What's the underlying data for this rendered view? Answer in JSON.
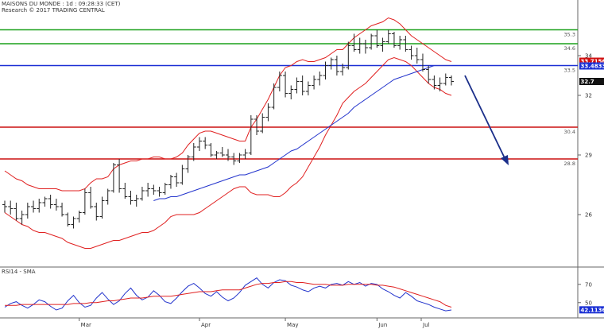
{
  "header": {
    "title": "MAISONS DU MONDE : 1d : 09:28:33 (CET)",
    "copyright": "Research © 2017 TRADING CENTRAL"
  },
  "indicator": {
    "label": "RSI14 - SMA"
  },
  "colors": {
    "background": "#ffffff",
    "price": "#222222",
    "bollinger": "#e02020",
    "ma": "#2233cc",
    "resistance": "#1aa01a",
    "pivot": "#1a2fd4",
    "support": "#cc1010",
    "arrow": "#1b2f8a",
    "rsi": "#2233cc",
    "rsi_sma": "#e02020"
  },
  "chart_data": [
    {
      "type": "candlestick",
      "title": "MAISONS DU MONDE : 1d : 09:28:33 (CET)",
      "x_labels": [
        "Mar",
        "Apr",
        "May",
        "Jun",
        "Jul"
      ],
      "y_ticks": [
        26,
        29,
        32,
        34
      ],
      "ylim": [
        24.0,
        36.0
      ],
      "levels": [
        {
          "name": "resistance",
          "value": 35.3,
          "label": "35.3",
          "color": "#1aa01a"
        },
        {
          "name": "resistance",
          "value": 34.6,
          "label": "34.6",
          "color": "#1aa01a"
        },
        {
          "name": "pivot",
          "value": 33.5,
          "label": "33.5",
          "color": "#1a2fd4"
        },
        {
          "name": "support",
          "value": 30.4,
          "label": "30.4",
          "color": "#cc1010"
        },
        {
          "name": "support",
          "value": 28.8,
          "label": "28.8",
          "color": "#cc1010"
        }
      ],
      "value_boxes": [
        {
          "label": "33.7156",
          "value": 33.72,
          "color": "#d01010"
        },
        {
          "label": "33.4833",
          "value": 33.48,
          "color": "#1a2fd4"
        },
        {
          "label": "32.7",
          "value": 32.7,
          "color": "#111111"
        }
      ],
      "ohlc": [
        [
          26.5,
          26.7,
          26.1,
          26.4
        ],
        [
          26.4,
          26.7,
          26.0,
          26.3
        ],
        [
          26.3,
          26.6,
          25.7,
          25.8
        ],
        [
          25.8,
          26.2,
          25.5,
          26.0
        ],
        [
          26.0,
          26.6,
          25.8,
          26.4
        ],
        [
          26.4,
          26.7,
          26.1,
          26.3
        ],
        [
          26.3,
          26.8,
          26.1,
          26.6
        ],
        [
          26.6,
          26.9,
          26.4,
          26.8
        ],
        [
          26.8,
          27.0,
          26.3,
          26.5
        ],
        [
          26.5,
          26.8,
          26.2,
          26.4
        ],
        [
          26.4,
          26.6,
          25.9,
          26.0
        ],
        [
          26.0,
          26.1,
          25.4,
          25.5
        ],
        [
          25.5,
          25.9,
          25.3,
          25.8
        ],
        [
          25.8,
          26.2,
          25.6,
          26.1
        ],
        [
          26.1,
          27.3,
          26.0,
          27.1
        ],
        [
          27.1,
          27.4,
          26.3,
          26.4
        ],
        [
          26.4,
          26.6,
          25.7,
          25.9
        ],
        [
          25.9,
          26.9,
          25.8,
          26.7
        ],
        [
          26.7,
          27.3,
          26.5,
          27.2
        ],
        [
          27.2,
          28.6,
          27.1,
          28.5
        ],
        [
          28.5,
          28.8,
          27.1,
          27.3
        ],
        [
          27.3,
          27.6,
          26.8,
          26.9
        ],
        [
          26.9,
          27.2,
          26.5,
          26.7
        ],
        [
          26.7,
          27.0,
          26.4,
          26.8
        ],
        [
          26.8,
          27.4,
          26.7,
          27.2
        ],
        [
          27.2,
          27.6,
          26.9,
          27.3
        ],
        [
          27.3,
          27.5,
          27.0,
          27.2
        ],
        [
          27.2,
          27.4,
          26.9,
          27.1
        ],
        [
          27.1,
          27.6,
          27.0,
          27.5
        ],
        [
          27.5,
          28.0,
          27.3,
          27.9
        ],
        [
          27.9,
          28.1,
          27.4,
          27.6
        ],
        [
          27.6,
          28.5,
          27.5,
          28.3
        ],
        [
          28.3,
          29.0,
          28.1,
          28.9
        ],
        [
          28.9,
          29.6,
          28.7,
          29.4
        ],
        [
          29.4,
          29.9,
          29.2,
          29.7
        ],
        [
          29.7,
          29.9,
          29.3,
          29.5
        ],
        [
          29.5,
          29.6,
          28.9,
          29.0
        ],
        [
          29.0,
          29.2,
          28.8,
          29.1
        ],
        [
          29.1,
          29.4,
          28.9,
          29.0
        ],
        [
          29.0,
          29.3,
          28.7,
          28.9
        ],
        [
          28.9,
          29.1,
          28.5,
          28.7
        ],
        [
          28.7,
          29.1,
          28.6,
          29.0
        ],
        [
          29.0,
          29.3,
          28.8,
          29.1
        ],
        [
          29.1,
          31.0,
          29.0,
          30.8
        ],
        [
          30.8,
          31.0,
          30.0,
          30.2
        ],
        [
          30.2,
          31.1,
          30.1,
          30.9
        ],
        [
          30.9,
          31.6,
          30.7,
          31.4
        ],
        [
          31.4,
          32.6,
          31.3,
          32.4
        ],
        [
          32.4,
          33.2,
          32.2,
          33.0
        ],
        [
          33.0,
          33.2,
          31.9,
          32.1
        ],
        [
          32.1,
          32.5,
          31.8,
          32.3
        ],
        [
          32.3,
          32.9,
          32.1,
          32.7
        ],
        [
          32.7,
          33.0,
          32.0,
          32.2
        ],
        [
          32.2,
          32.7,
          32.0,
          32.5
        ],
        [
          32.5,
          33.0,
          32.3,
          32.8
        ],
        [
          32.8,
          33.2,
          32.5,
          33.0
        ],
        [
          33.0,
          33.7,
          32.8,
          33.5
        ],
        [
          33.5,
          33.9,
          33.3,
          33.8
        ],
        [
          33.8,
          34.0,
          33.0,
          33.2
        ],
        [
          33.2,
          33.6,
          33.0,
          33.4
        ],
        [
          33.4,
          34.7,
          33.3,
          34.5
        ],
        [
          34.5,
          35.1,
          34.2,
          34.3
        ],
        [
          34.3,
          34.9,
          34.1,
          34.6
        ],
        [
          34.6,
          34.8,
          34.1,
          34.4
        ],
        [
          34.4,
          35.1,
          34.3,
          35.0
        ],
        [
          35.0,
          35.3,
          34.4,
          34.5
        ],
        [
          34.5,
          34.9,
          34.2,
          34.7
        ],
        [
          34.7,
          35.3,
          34.6,
          35.1
        ],
        [
          35.1,
          35.2,
          34.4,
          34.5
        ],
        [
          34.5,
          35.0,
          34.3,
          34.8
        ],
        [
          34.8,
          35.0,
          34.2,
          34.3
        ],
        [
          34.3,
          34.5,
          33.8,
          34.0
        ],
        [
          34.0,
          34.4,
          33.6,
          33.8
        ],
        [
          33.8,
          34.1,
          33.2,
          33.3
        ],
        [
          33.3,
          33.5,
          32.6,
          32.8
        ],
        [
          32.8,
          33.0,
          32.3,
          32.5
        ],
        [
          32.5,
          32.9,
          32.2,
          32.6
        ],
        [
          32.6,
          33.1,
          32.5,
          32.9
        ],
        [
          32.9,
          33.0,
          32.5,
          32.7
        ]
      ],
      "bollinger_upper": [
        28.2,
        28.0,
        27.8,
        27.7,
        27.5,
        27.4,
        27.3,
        27.3,
        27.3,
        27.3,
        27.2,
        27.2,
        27.2,
        27.2,
        27.3,
        27.6,
        27.8,
        27.8,
        27.9,
        28.3,
        28.5,
        28.6,
        28.7,
        28.7,
        28.8,
        28.8,
        28.9,
        28.9,
        28.8,
        28.8,
        28.9,
        29.1,
        29.5,
        29.8,
        30.1,
        30.2,
        30.2,
        30.1,
        30.0,
        29.9,
        29.8,
        29.7,
        29.7,
        30.4,
        30.8,
        31.3,
        31.8,
        32.4,
        33.0,
        33.4,
        33.5,
        33.7,
        33.8,
        33.7,
        33.7,
        33.8,
        33.9,
        34.1,
        34.3,
        34.3,
        34.6,
        34.9,
        35.1,
        35.3,
        35.5,
        35.6,
        35.7,
        35.9,
        35.8,
        35.6,
        35.3,
        35.0,
        34.8,
        34.6,
        34.4,
        34.2,
        34.0,
        33.8,
        33.7
      ],
      "bollinger_lower": [
        26.1,
        25.9,
        25.7,
        25.5,
        25.4,
        25.2,
        25.1,
        25.1,
        25.0,
        24.9,
        24.8,
        24.6,
        24.5,
        24.4,
        24.3,
        24.3,
        24.4,
        24.5,
        24.6,
        24.7,
        24.7,
        24.8,
        24.9,
        25.0,
        25.1,
        25.1,
        25.2,
        25.4,
        25.6,
        25.9,
        26.0,
        26.0,
        26.0,
        26.0,
        26.1,
        26.3,
        26.5,
        26.7,
        26.9,
        27.1,
        27.3,
        27.4,
        27.4,
        27.1,
        27.0,
        27.0,
        27.0,
        26.9,
        26.9,
        27.1,
        27.4,
        27.6,
        27.9,
        28.4,
        28.9,
        29.4,
        30.0,
        30.5,
        31.0,
        31.6,
        31.9,
        32.2,
        32.4,
        32.6,
        32.9,
        33.2,
        33.5,
        33.8,
        33.9,
        33.8,
        33.7,
        33.5,
        33.2,
        32.9,
        32.6,
        32.4,
        32.3,
        32.1,
        32.0
      ],
      "moving_average": [
        25.8,
        25.8,
        25.9,
        25.9,
        26.0,
        26.0,
        26.1,
        26.1,
        26.1,
        26.1,
        26.1,
        26.1,
        26.1,
        26.1,
        26.2,
        26.3,
        26.3,
        26.3,
        26.4,
        26.5,
        26.5,
        26.6,
        26.6,
        26.6,
        26.7,
        26.7,
        26.7,
        26.8,
        26.8,
        26.9,
        26.9,
        27.0,
        27.1,
        27.2,
        27.3,
        27.4,
        27.5,
        27.6,
        27.7,
        27.8,
        27.9,
        28.0,
        28.0,
        28.1,
        28.2,
        28.3,
        28.4,
        28.6,
        28.8,
        29.0,
        29.2,
        29.3,
        29.5,
        29.7,
        29.9,
        30.1,
        30.3,
        30.5,
        30.7,
        30.9,
        31.1,
        31.4,
        31.6,
        31.8,
        32.0,
        32.2,
        32.4,
        32.6,
        32.8,
        32.9,
        33.0,
        33.1,
        33.2,
        33.3,
        33.4,
        33.5,
        33.5,
        33.5,
        33.5
      ]
    },
    {
      "type": "line",
      "title": "RSI14 - SMA",
      "y_ticks": [
        70,
        50
      ],
      "ylim": [
        35,
        82
      ],
      "value_boxes": [
        {
          "label": "42.1136",
          "value": 42.1,
          "color": "#1a2fd4"
        }
      ],
      "series": [
        {
          "values": [
            45,
            49,
            51,
            47,
            44,
            48,
            53,
            51,
            46,
            42,
            44,
            52,
            58,
            50,
            45,
            47,
            55,
            61,
            54,
            48,
            52,
            60,
            66,
            58,
            53,
            56,
            63,
            58,
            51,
            49,
            55,
            62,
            68,
            71,
            66,
            60,
            57,
            62,
            56,
            52,
            55,
            61,
            69,
            73,
            77,
            70,
            66,
            72,
            75,
            74,
            69,
            67,
            64,
            62,
            66,
            68,
            66,
            70,
            71,
            69,
            73,
            70,
            72,
            68,
            71,
            70,
            65,
            62,
            58,
            55,
            61,
            57,
            52,
            50,
            48,
            45,
            43,
            41,
            42
          ]
        },
        {
          "values": [
            47,
            47,
            47,
            48,
            48,
            48,
            48,
            48,
            48,
            48,
            48,
            48,
            49,
            49,
            49,
            50,
            50,
            51,
            52,
            52,
            53,
            54,
            55,
            55,
            55,
            56,
            57,
            57,
            57,
            57,
            58,
            59,
            60,
            61,
            62,
            62,
            62,
            63,
            64,
            64,
            64,
            64,
            66,
            68,
            70,
            71,
            71,
            72,
            72,
            73,
            73,
            72,
            72,
            71,
            70,
            70,
            70,
            69,
            69,
            69,
            70,
            70,
            70,
            70,
            70,
            69,
            69,
            68,
            67,
            65,
            63,
            61,
            59,
            57,
            55,
            53,
            51,
            47,
            45
          ]
        }
      ]
    }
  ]
}
